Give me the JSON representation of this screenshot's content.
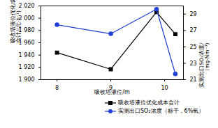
{
  "chart_data": {
    "type": "line",
    "x": [
      8,
      9,
      9.85,
      10.2
    ],
    "xlim": [
      7.7,
      10.35
    ],
    "xticks": [
      8,
      9,
      10
    ],
    "x_label": "吸收塔液位/m",
    "y_label": "吸收塔液位优化成本\n合计/(元·h⁻¹)",
    "y2_label": "实测出口SO₂浓度/\n(mg·Nm⁻³)",
    "ylim": [
      1900,
      2020
    ],
    "yticks": [
      {
        "value": 1900,
        "label": "1 900"
      },
      {
        "value": 1920,
        "label": "1 920"
      },
      {
        "value": 1940,
        "label": "1 940"
      },
      {
        "value": 1960,
        "label": "1 960"
      },
      {
        "value": 1980,
        "label": "1 980"
      },
      {
        "value": 2000,
        "label": "2 000"
      },
      {
        "value": 2020,
        "label": "2 020"
      }
    ],
    "y2lim": [
      21,
      30
    ],
    "y2ticks": [
      21,
      23,
      25,
      27,
      29
    ],
    "grid": false,
    "legend": "bottom",
    "series": [
      {
        "name": "吸收塔液位优化成本合计",
        "color": "#000000",
        "marker": "square",
        "values": [
          1944,
          1917,
          2010,
          1974
        ]
      },
      {
        "name": "实测出口SO₂浓度（标干，6%氧）",
        "color": "#1f3fd6",
        "marker": "circle",
        "axis": "y2",
        "values": [
          27.7,
          26.6,
          29.6,
          21.7
        ]
      }
    ]
  }
}
